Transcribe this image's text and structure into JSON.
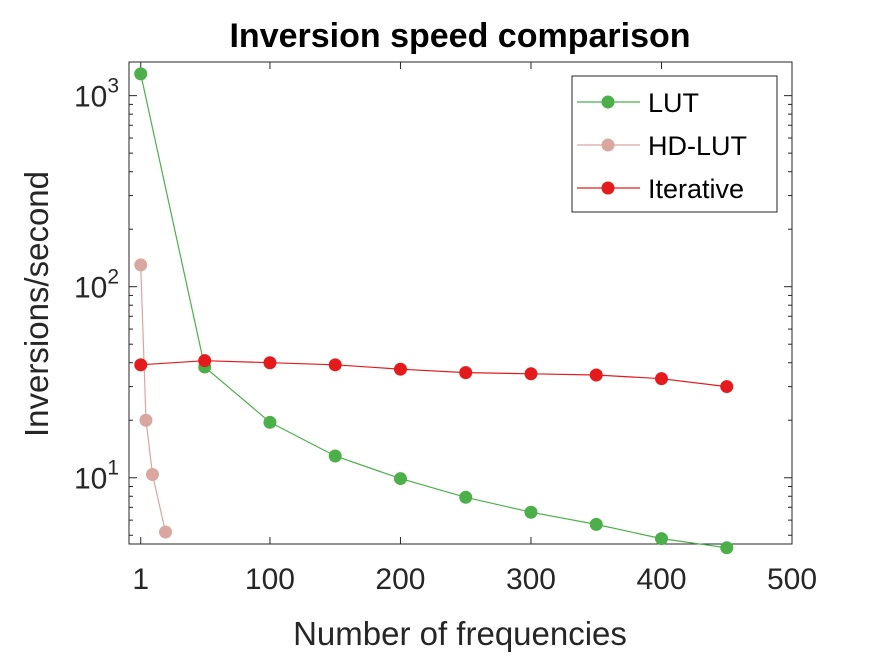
{
  "chart_data": {
    "type": "line",
    "title": "Inversion speed comparison",
    "xlabel": "Number of frequencies",
    "ylabel": "Inversions/second",
    "x_scale": "linear",
    "y_scale": "log",
    "xlim": [
      -8,
      500
    ],
    "ylim": [
      4.5,
      1500
    ],
    "x_ticks": [
      1,
      100,
      200,
      300,
      400,
      500
    ],
    "x_tick_labels": [
      "1",
      "100",
      "200",
      "300",
      "400",
      "500"
    ],
    "y_ticks": [
      10,
      100,
      1000
    ],
    "y_tick_base": "10",
    "y_tick_exponents": [
      "1",
      "2",
      "3"
    ],
    "grid": false,
    "legend_position": "top-right",
    "series": [
      {
        "name": "LUT",
        "color": "#4daf4a",
        "x": [
          1,
          50,
          100,
          150,
          200,
          250,
          300,
          350,
          400,
          450
        ],
        "y": [
          1300,
          38,
          19.5,
          13,
          9.9,
          7.9,
          6.6,
          5.7,
          4.8,
          4.3
        ]
      },
      {
        "name": "HD-LUT",
        "color": "#d9a6a0",
        "x": [
          1,
          5,
          10,
          20
        ],
        "y": [
          130,
          20,
          10.4,
          5.2
        ]
      },
      {
        "name": "Iterative",
        "color": "#e41a1c",
        "x": [
          1,
          50,
          100,
          150,
          200,
          250,
          300,
          350,
          400,
          450
        ],
        "y": [
          39,
          41,
          40,
          39,
          37,
          35.5,
          35,
          34.5,
          33,
          30
        ]
      }
    ]
  }
}
